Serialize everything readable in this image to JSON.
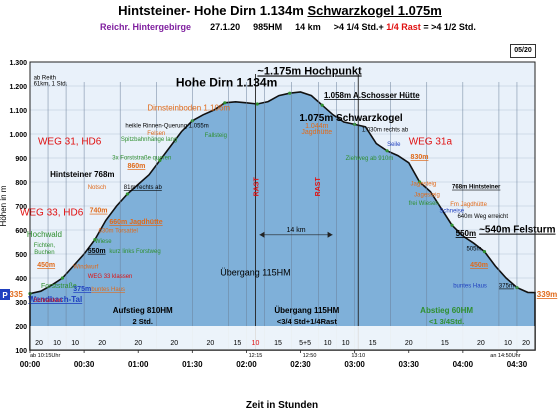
{
  "header": {
    "title_part1": "Hintsteiner- Hohe Dirn 1.134m",
    "title_part2": "Schwarzkogel 1.075m",
    "subtitle_start": "Reichr. Hintergebirge",
    "subtitle_date": "27.1.20",
    "subtitle_hm": "985HM",
    "subtitle_km": "14 km",
    "subtitle_time_a": ">4 1/4 Std.+",
    "subtitle_rast": "1/4 Rast",
    "subtitle_time_b": "= >4 1/2 Std.",
    "page_badge": "05/20"
  },
  "colors": {
    "area_fill": "#7fb0d9",
    "title_purple": "#7f1f9f",
    "rast_red": "#e01010",
    "orange": "#e06a1a",
    "green": "#2f8f2f",
    "blue": "#1f3fbf"
  },
  "chart_data": {
    "type": "area",
    "title": "",
    "xlabel": "Zeit in Stunden",
    "ylabel": "Höhen in m",
    "xlim": [
      0,
      280
    ],
    "ylim": [
      100,
      1300
    ],
    "grid": true,
    "y_ticks": [
      "100",
      "200",
      "300",
      "400",
      "500",
      "600",
      "700",
      "800",
      "900",
      "1.000",
      "1.100",
      "1.200",
      "1.300"
    ],
    "x_ticks": [
      {
        "t": 0,
        "label": "00:00"
      },
      {
        "t": 30,
        "label": "00:30"
      },
      {
        "t": 60,
        "label": "01:00"
      },
      {
        "t": 90,
        "label": "01:30"
      },
      {
        "t": 120,
        "label": "02:00"
      },
      {
        "t": 150,
        "label": "02:30"
      },
      {
        "t": 180,
        "label": "03:00"
      },
      {
        "t": 210,
        "label": "03:30"
      },
      {
        "t": 240,
        "label": "04:00"
      },
      {
        "t": 270,
        "label": "04:30"
      }
    ],
    "profile": [
      [
        0,
        335
      ],
      [
        6,
        345
      ],
      [
        12,
        370
      ],
      [
        18,
        400
      ],
      [
        24,
        450
      ],
      [
        30,
        500
      ],
      [
        36,
        560
      ],
      [
        42,
        640
      ],
      [
        48,
        700
      ],
      [
        54,
        750
      ],
      [
        60,
        790
      ],
      [
        66,
        830
      ],
      [
        72,
        890
      ],
      [
        78,
        950
      ],
      [
        84,
        1010
      ],
      [
        90,
        1055
      ],
      [
        96,
        1080
      ],
      [
        102,
        1100
      ],
      [
        108,
        1130
      ],
      [
        114,
        1134
      ],
      [
        120,
        1130
      ],
      [
        126,
        1125
      ],
      [
        132,
        1135
      ],
      [
        138,
        1160
      ],
      [
        144,
        1170
      ],
      [
        150,
        1175
      ],
      [
        156,
        1160
      ],
      [
        162,
        1120
      ],
      [
        168,
        1080
      ],
      [
        174,
        1050
      ],
      [
        180,
        1040
      ],
      [
        186,
        1030
      ],
      [
        192,
        960
      ],
      [
        198,
        930
      ],
      [
        204,
        910
      ],
      [
        210,
        880
      ],
      [
        216,
        800
      ],
      [
        222,
        760
      ],
      [
        228,
        690
      ],
      [
        234,
        620
      ],
      [
        240,
        575
      ],
      [
        246,
        545
      ],
      [
        252,
        510
      ],
      [
        258,
        450
      ],
      [
        264,
        400
      ],
      [
        270,
        360
      ],
      [
        276,
        340
      ],
      [
        280,
        339
      ]
    ],
    "segment_times": [
      {
        "t0": 0,
        "t1": 10,
        "label": "20"
      },
      {
        "t0": 10,
        "t1": 20,
        "label": "10"
      },
      {
        "t0": 20,
        "t1": 30,
        "label": "10"
      },
      {
        "t0": 30,
        "t1": 50,
        "label": "20"
      },
      {
        "t0": 50,
        "t1": 70,
        "label": "20"
      },
      {
        "t0": 70,
        "t1": 90,
        "label": "20"
      },
      {
        "t0": 90,
        "t1": 110,
        "label": "20"
      },
      {
        "t0": 110,
        "t1": 120,
        "label": "15"
      },
      {
        "t0": 120,
        "t1": 130,
        "label": "10"
      },
      {
        "t0": 130,
        "t1": 145,
        "label": "15"
      },
      {
        "t0": 145,
        "t1": 160,
        "label": "5+5"
      },
      {
        "t0": 160,
        "t1": 170,
        "label": "10"
      },
      {
        "t0": 170,
        "t1": 180,
        "label": "10"
      },
      {
        "t0": 180,
        "t1": 200,
        "label": "15"
      },
      {
        "t0": 200,
        "t1": 220,
        "label": "20"
      },
      {
        "t0": 220,
        "t1": 240,
        "label": "15"
      },
      {
        "t0": 240,
        "t1": 260,
        "label": "20"
      },
      {
        "t0": 260,
        "t1": 270,
        "label": "10"
      },
      {
        "t0": 270,
        "t1": 280,
        "label": "20"
      }
    ],
    "clock_marks": [
      {
        "t": 0,
        "label": "ab 10:15Uhr"
      },
      {
        "t": 125,
        "label": "12:15"
      },
      {
        "t": 155,
        "label": "12:50"
      },
      {
        "t": 182,
        "label": "13:10"
      },
      {
        "t": 272,
        "label": "an 14:50Uhr"
      }
    ],
    "rast_marks": [
      {
        "t": 125,
        "label": "RAST"
      },
      {
        "t": 159,
        "label": "RAST"
      }
    ],
    "distance": {
      "t0": 125,
      "t1": 170,
      "elev": 580,
      "label": "14 km"
    },
    "annotations": [
      {
        "t": 109,
        "elev": 1198,
        "text": "Hohe Dirn 1.134m",
        "size": 12,
        "color": "#000000",
        "bold": true,
        "anchor": "middle"
      },
      {
        "t": 155,
        "elev": 1248,
        "text": "~1.175m Hochpunkt",
        "size": 11,
        "color": "#000000",
        "bold": true,
        "anchor": "middle",
        "underline": true
      },
      {
        "t": 178,
        "elev": 1055,
        "text": "1.075m Schwarzkogel",
        "size": 10,
        "color": "#000000",
        "bold": true,
        "anchor": "middle"
      },
      {
        "t": 163,
        "elev": 1150,
        "text": "1.058m A.Schosser Hütte",
        "size": 8,
        "color": "#000000",
        "bold": true,
        "anchor": "start",
        "underline": true
      },
      {
        "t": 88,
        "elev": 1098,
        "text": "Dirnsteinboden 1.106m",
        "size": 8,
        "color": "#e06a1a",
        "bold": false,
        "anchor": "middle"
      },
      {
        "t": 76,
        "elev": 1028,
        "text": "heikle Rinnen-Querung 1.055m",
        "size": 6,
        "color": "#000000",
        "bold": false,
        "anchor": "middle"
      },
      {
        "t": 70,
        "elev": 995,
        "text": "Felsen",
        "size": 6,
        "color": "#e06a1a",
        "bold": false,
        "anchor": "middle"
      },
      {
        "t": 66,
        "elev": 970,
        "text": "Spitzbahnhänge lang",
        "size": 6,
        "color": "#2f8f2f",
        "bold": false,
        "anchor": "middle"
      },
      {
        "t": 103,
        "elev": 988,
        "text": "Fallsteig",
        "size": 6,
        "color": "#2f8f2f",
        "bold": false,
        "anchor": "middle"
      },
      {
        "t": 62,
        "elev": 893,
        "text": "3x Forststraße queren",
        "size": 6,
        "color": "#2f8f2f",
        "bold": false,
        "anchor": "middle"
      },
      {
        "t": 59,
        "elev": 858,
        "text": "860m",
        "size": 7,
        "color": "#e06a1a",
        "bold": true,
        "anchor": "middle",
        "underline": true
      },
      {
        "t": 159,
        "elev": 1025,
        "text": "1.044m",
        "size": 7,
        "color": "#e06a1a",
        "bold": false,
        "anchor": "middle"
      },
      {
        "t": 159,
        "elev": 1000,
        "text": "Jagdhütte",
        "size": 7,
        "color": "#e06a1a",
        "bold": false,
        "anchor": "middle"
      },
      {
        "t": 184,
        "elev": 1010,
        "text": "1.030m rechts ab",
        "size": 6,
        "color": "#000000",
        "bold": false,
        "anchor": "start"
      },
      {
        "t": 198,
        "elev": 950,
        "text": "Seile",
        "size": 6,
        "color": "#1f3fbf",
        "bold": false,
        "anchor": "start"
      },
      {
        "t": 175,
        "elev": 892,
        "text": "Ziehweg ab 910m",
        "size": 6,
        "color": "#2f8f2f",
        "bold": false,
        "anchor": "start"
      },
      {
        "t": 211,
        "elev": 895,
        "text": "830m",
        "size": 7,
        "color": "#e06a1a",
        "bold": true,
        "anchor": "start",
        "underline": true
      },
      {
        "t": 22,
        "elev": 957,
        "text": "WEG 31, HD6",
        "size": 10,
        "color": "#e01010",
        "bold": false,
        "anchor": "middle"
      },
      {
        "t": 222,
        "elev": 957,
        "text": "WEG 31a",
        "size": 10,
        "color": "#e01010",
        "bold": false,
        "anchor": "middle"
      },
      {
        "t": 12,
        "elev": 660,
        "text": "WEG 33, HD6",
        "size": 10,
        "color": "#e01010",
        "bold": false,
        "anchor": "middle"
      },
      {
        "t": 29,
        "elev": 820,
        "text": "Hintsteiner 768m",
        "size": 8,
        "color": "#000000",
        "bold": true,
        "anchor": "middle"
      },
      {
        "t": 32,
        "elev": 770,
        "text": "Notsch",
        "size": 6,
        "color": "#e06a1a",
        "bold": false,
        "anchor": "start"
      },
      {
        "t": 52,
        "elev": 770,
        "text": "81m rechts ab",
        "size": 6,
        "color": "#000000",
        "bold": false,
        "anchor": "start",
        "underline": true
      },
      {
        "t": 38,
        "elev": 672,
        "text": "740m",
        "size": 7,
        "color": "#e06a1a",
        "bold": true,
        "anchor": "middle",
        "underline": true
      },
      {
        "t": 44,
        "elev": 625,
        "text": "660m Jagdhütte",
        "size": 7,
        "color": "#e06a1a",
        "bold": true,
        "anchor": "start",
        "underline": true
      },
      {
        "t": 38,
        "elev": 590,
        "text": "630m Torsattel",
        "size": 6,
        "color": "#e06a1a",
        "bold": false,
        "anchor": "start"
      },
      {
        "t": 8,
        "elev": 570,
        "text": "Hochwald",
        "size": 8,
        "color": "#2f8f2f",
        "bold": false,
        "anchor": "middle"
      },
      {
        "t": 8,
        "elev": 530,
        "text": "Fichten,",
        "size": 6,
        "color": "#2f8f2f",
        "bold": false,
        "anchor": "middle"
      },
      {
        "t": 8,
        "elev": 500,
        "text": "Buchen",
        "size": 6,
        "color": "#2f8f2f",
        "bold": false,
        "anchor": "middle"
      },
      {
        "t": 36,
        "elev": 545,
        "text": "Wiese",
        "size": 6,
        "color": "#2f8f2f",
        "bold": false,
        "anchor": "start"
      },
      {
        "t": 32,
        "elev": 505,
        "text": "550m",
        "size": 7,
        "color": "#000000",
        "bold": true,
        "anchor": "start",
        "underline": true
      },
      {
        "t": 44,
        "elev": 505,
        "text": "kurz links Forstweg",
        "size": 6,
        "color": "#2f8f2f",
        "bold": false,
        "anchor": "start"
      },
      {
        "t": 4,
        "elev": 445,
        "text": "450m",
        "size": 7,
        "color": "#e06a1a",
        "bold": true,
        "anchor": "start",
        "underline": true
      },
      {
        "t": 24,
        "elev": 440,
        "text": "Windwurf",
        "size": 6,
        "color": "#e06a1a",
        "bold": false,
        "anchor": "start"
      },
      {
        "t": 32,
        "elev": 400,
        "text": "WEG 33 klassen",
        "size": 6,
        "color": "#e01010",
        "bold": false,
        "anchor": "start"
      },
      {
        "t": 16,
        "elev": 358,
        "text": "Forststraße",
        "size": 7,
        "color": "#2f8f2f",
        "bold": false,
        "anchor": "middle"
      },
      {
        "t": 14,
        "elev": 300,
        "text": "Wendbach-Tal",
        "size": 8,
        "color": "#1f3fbf",
        "bold": true,
        "anchor": "middle",
        "underline": true
      },
      {
        "t": 24,
        "elev": 345,
        "text": "375m",
        "size": 7,
        "color": "#1f3fbf",
        "bold": true,
        "anchor": "start",
        "underline": true
      },
      {
        "t": 34,
        "elev": 345,
        "text": "buntes Haus",
        "size": 6,
        "color": "#e06a1a",
        "bold": false,
        "anchor": "start",
        "underline": true
      },
      {
        "t": 2,
        "elev": 300,
        "text": "Schranken",
        "size": 6,
        "color": "#e01010",
        "bold": false,
        "anchor": "start"
      },
      {
        "t": -4,
        "elev": 320,
        "text": "335",
        "size": 8,
        "color": "#e06a1a",
        "bold": true,
        "anchor": "end"
      },
      {
        "t": 281,
        "elev": 320,
        "text": "339m",
        "size": 8,
        "color": "#e06a1a",
        "bold": true,
        "anchor": "start",
        "underline": true
      },
      {
        "t": 234,
        "elev": 772,
        "text": "768m Hintsteiner",
        "size": 6,
        "color": "#000000",
        "bold": true,
        "anchor": "start",
        "underline": true
      },
      {
        "t": 211,
        "elev": 785,
        "text": "Jagesteig",
        "size": 6,
        "color": "#e06a1a",
        "bold": false,
        "anchor": "start"
      },
      {
        "t": 213,
        "elev": 740,
        "text": "Jagesteig",
        "size": 6,
        "color": "#e06a1a",
        "bold": false,
        "anchor": "start"
      },
      {
        "t": 210,
        "elev": 705,
        "text": "frei Wiesen",
        "size": 6,
        "color": "#2f8f2f",
        "bold": false,
        "anchor": "start"
      },
      {
        "t": 233,
        "elev": 700,
        "text": "Fm Jagdhütte",
        "size": 6,
        "color": "#e06a1a",
        "bold": false,
        "anchor": "start"
      },
      {
        "t": 227,
        "elev": 672,
        "text": "Schneise",
        "size": 6,
        "color": "#1f3fbf",
        "bold": false,
        "anchor": "start"
      },
      {
        "t": 237,
        "elev": 650,
        "text": "640m Weg erreicht",
        "size": 6,
        "color": "#000000",
        "bold": false,
        "anchor": "start"
      },
      {
        "t": 236,
        "elev": 575,
        "text": "550m",
        "size": 8,
        "color": "#000000",
        "bold": true,
        "anchor": "start",
        "underline": true
      },
      {
        "t": 242,
        "elev": 515,
        "text": "505m",
        "size": 6,
        "color": "#000000",
        "bold": false,
        "anchor": "start"
      },
      {
        "t": 249,
        "elev": 589,
        "text": "~540m Felsturm",
        "size": 10,
        "color": "#000000",
        "bold": true,
        "anchor": "start",
        "underline": true
      },
      {
        "t": 249,
        "elev": 445,
        "text": "450m",
        "size": 7,
        "color": "#e06a1a",
        "bold": true,
        "anchor": "middle",
        "underline": true
      },
      {
        "t": 244,
        "elev": 360,
        "text": "buntes Haus",
        "size": 6,
        "color": "#1f3fbf",
        "bold": false,
        "anchor": "middle"
      },
      {
        "t": 260,
        "elev": 360,
        "text": "375m",
        "size": 6,
        "color": "#000000",
        "bold": false,
        "anchor": "start",
        "underline": true
      },
      {
        "t": 2,
        "elev": 1228,
        "text": "ab Reith",
        "size": 6,
        "color": "#000000",
        "bold": false,
        "anchor": "start"
      },
      {
        "t": 2,
        "elev": 1203,
        "text": "61km, 1 Std.",
        "size": 6,
        "color": "#000000",
        "bold": false,
        "anchor": "start"
      },
      {
        "t": 125,
        "elev": 410,
        "text": "Übergang 115HM",
        "size": 9,
        "color": "#000000",
        "bold": false,
        "anchor": "middle"
      }
    ],
    "phases": [
      {
        "t0": 0,
        "t1": 125,
        "elev": 255,
        "label": "Aufstieg 810HM",
        "sub": "2 Std.",
        "color": "#000000"
      },
      {
        "t0": 125,
        "t1": 182,
        "elev": 255,
        "label": "Übergang 115HM",
        "sub": "<3/4 Std+1/4Rast",
        "color": "#000000"
      },
      {
        "t0": 182,
        "t1": 280,
        "elev": 255,
        "label": "Abstieg 60HM",
        "sub": "<1 3/4Std.",
        "color": "#2f8f2f"
      }
    ]
  }
}
